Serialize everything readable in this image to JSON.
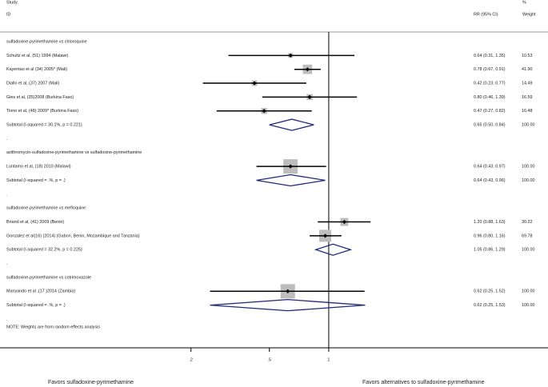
{
  "chart_data": {
    "type": "forest",
    "headers": {
      "study": "Study",
      "id": "ID",
      "ci": "RR (95% CI)",
      "pct": "%",
      "weight": "Weight"
    },
    "groups": [
      {
        "name": "sulfadoxine-pyrimethamine vs chloroquine",
        "studies": [
          {
            "label": "Schultz et al, (51) 1994 (Malawi)",
            "rr": 0.64,
            "lo": 0.31,
            "hi": 1.35,
            "ci_label": "0.64 (0.31, 1.35)",
            "weight": 10.53
          },
          {
            "label": "Kayentao et al (34) 2005* (Mali)",
            "rr": 0.78,
            "lo": 0.67,
            "hi": 0.91,
            "ci_label": "0.78 (0.67, 0.91)",
            "weight": 41.9,
            "weight_label": "41.90"
          },
          {
            "label": "Diallo et al, (37) 2007 (Mali)",
            "rr": 0.42,
            "lo": 0.23,
            "hi": 0.77,
            "ci_label": "0.42 (0.23, 0.77)",
            "weight": 14.49
          },
          {
            "label": "Gies et al, (35)2008 (Burkina Faso)",
            "rr": 0.8,
            "lo": 0.46,
            "hi": 1.39,
            "ci_label": "0.80 (0.46, 1.39)",
            "weight": 16.59
          },
          {
            "label": "Tiono et al, (48) 2009* (Burkina Faso)",
            "rr": 0.47,
            "lo": 0.27,
            "hi": 0.82,
            "ci_label": "0.47 (0.27, 0.82)",
            "weight": 16.48
          }
        ],
        "subtotal": {
          "label": "Subtotal  (I-squared = 30.1%, p = 0.221)",
          "rr": 0.65,
          "lo": 0.5,
          "hi": 0.84,
          "ci_label": "0.65 (0.50, 0.84)",
          "weight": 100,
          "weight_label": "100.00"
        },
        "end": "."
      },
      {
        "name": "azithromycin-sulfadoxine-pyrimethamine vs sulfadoxine-pyrimethamine",
        "studies": [
          {
            "label": "Luntamo et al, (18) 2010 (Malawi)",
            "rr": 0.64,
            "lo": 0.43,
            "hi": 0.97,
            "ci_label": "0.64 (0.43, 0.97)",
            "weight": 100,
            "weight_label": "100.00"
          }
        ],
        "subtotal": {
          "label": "Subtotal  (I-squared = .%, p = .)",
          "rr": 0.64,
          "lo": 0.43,
          "hi": 0.96,
          "ci_label": "0.64 (0.43, 0.96)",
          "weight": 100,
          "weight_label": "100.00"
        },
        "end": "."
      },
      {
        "name": "sulfadoxine-pyrimethamine vs mefloquine",
        "studies": [
          {
            "label": "Briand et al, (41) 2009 (Benin)",
            "rr": 1.2,
            "lo": 0.88,
            "hi": 1.63,
            "ci_label": "1.20 (0.88, 1.63)",
            "weight": 30.22
          },
          {
            "label": "Gonzalez et al(16) (2014) (Gabon, Benin, Mozambique and Tanzania)",
            "rr": 0.96,
            "lo": 0.8,
            "hi": 1.16,
            "ci_label": "0.96 (0.80, 1.16)",
            "weight": 69.78
          }
        ],
        "subtotal": {
          "label": "Subtotal  (I-squared = 32.2%, p = 0.225)",
          "rr": 1.05,
          "lo": 0.86,
          "hi": 1.29,
          "ci_label": "1.05 (0.86, 1.29)",
          "weight": 100,
          "weight_label": "100.00"
        },
        "end": "."
      },
      {
        "name": "sulfadoxine-pyrimethamine vs cotrimoxazole",
        "studies": [
          {
            "label": "Manyando et al ,(17 )2014 (Zambia)",
            "rr": 0.62,
            "lo": 0.25,
            "hi": 1.52,
            "ci_label": "0.62 (0.25, 1.52)",
            "weight": 100,
            "weight_label": "100.00"
          }
        ],
        "subtotal": {
          "label": "Subtotal  (I-squared = .%, p = .)",
          "rr": 0.62,
          "lo": 0.25,
          "hi": 1.53,
          "ci_label": "0.62 (0.25, 1.53)",
          "weight": 100,
          "weight_label": "100.00"
        },
        "end": "."
      }
    ],
    "note": "NOTE: Weights are from random effects analysis",
    "xscale": "log",
    "xlim": [
      0.0215,
      12.95
    ],
    "xticks": [
      {
        "value": 0.2,
        "label": ".2"
      },
      {
        "value": 0.5,
        "label": ".5"
      },
      1
    ],
    "ref_line": 1,
    "left_label": "Favors sulfadoxine-pyrimethamine",
    "right_label": "Favors alternatives to sulfadoxine-pyrimethamine",
    "box_color": "#bdbdbd",
    "line_color": "#000000",
    "diamond_color": "#1f2a7a"
  }
}
